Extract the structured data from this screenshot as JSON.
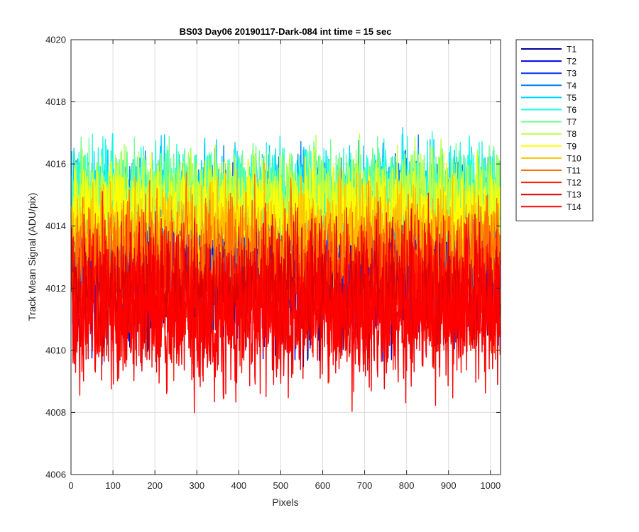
{
  "chart_data": {
    "type": "line",
    "title": "BS03 Day06 20190117-Dark-084 int time = 15 sec",
    "xlabel": "Pixels",
    "ylabel": "Track Mean Signal (ADU/pix)",
    "xlim": [
      0,
      1024
    ],
    "ylim": [
      4006,
      4020
    ],
    "xticks": [
      0,
      100,
      200,
      300,
      400,
      500,
      600,
      700,
      800,
      900,
      1000
    ],
    "yticks": [
      4006,
      4008,
      4010,
      4012,
      4014,
      4016,
      4018,
      4020
    ],
    "grid": true,
    "legend_position": "outside-top-right",
    "series": [
      {
        "name": "T1",
        "color": "#00008f",
        "mean": 4012.6,
        "spread": 1.5
      },
      {
        "name": "T2",
        "color": "#0000df",
        "mean": 4012.7,
        "spread": 1.5
      },
      {
        "name": "T3",
        "color": "#0030ff",
        "mean": 4012.9,
        "spread": 1.5
      },
      {
        "name": "T4",
        "color": "#0080ff",
        "mean": 4014.7,
        "spread": 1.0
      },
      {
        "name": "T5",
        "color": "#00cfff",
        "mean": 4015.0,
        "spread": 1.0
      },
      {
        "name": "T6",
        "color": "#20ffdf",
        "mean": 4015.1,
        "spread": 1.0
      },
      {
        "name": "T7",
        "color": "#70ff8f",
        "mean": 4015.0,
        "spread": 1.0
      },
      {
        "name": "T8",
        "color": "#bfff40",
        "mean": 4014.8,
        "spread": 1.0
      },
      {
        "name": "T9",
        "color": "#ffff00",
        "mean": 4014.4,
        "spread": 1.0
      },
      {
        "name": "T10",
        "color": "#ffbf00",
        "mean": 4013.7,
        "spread": 1.1
      },
      {
        "name": "T11",
        "color": "#ff7000",
        "mean": 4012.9,
        "spread": 1.3
      },
      {
        "name": "T12",
        "color": "#ff2000",
        "mean": 4012.0,
        "spread": 1.4
      },
      {
        "name": "T13",
        "color": "#df0000",
        "mean": 4011.6,
        "spread": 1.5
      },
      {
        "name": "T14",
        "color": "#ff0000",
        "mean": 4011.2,
        "spread": 1.5
      }
    ]
  }
}
